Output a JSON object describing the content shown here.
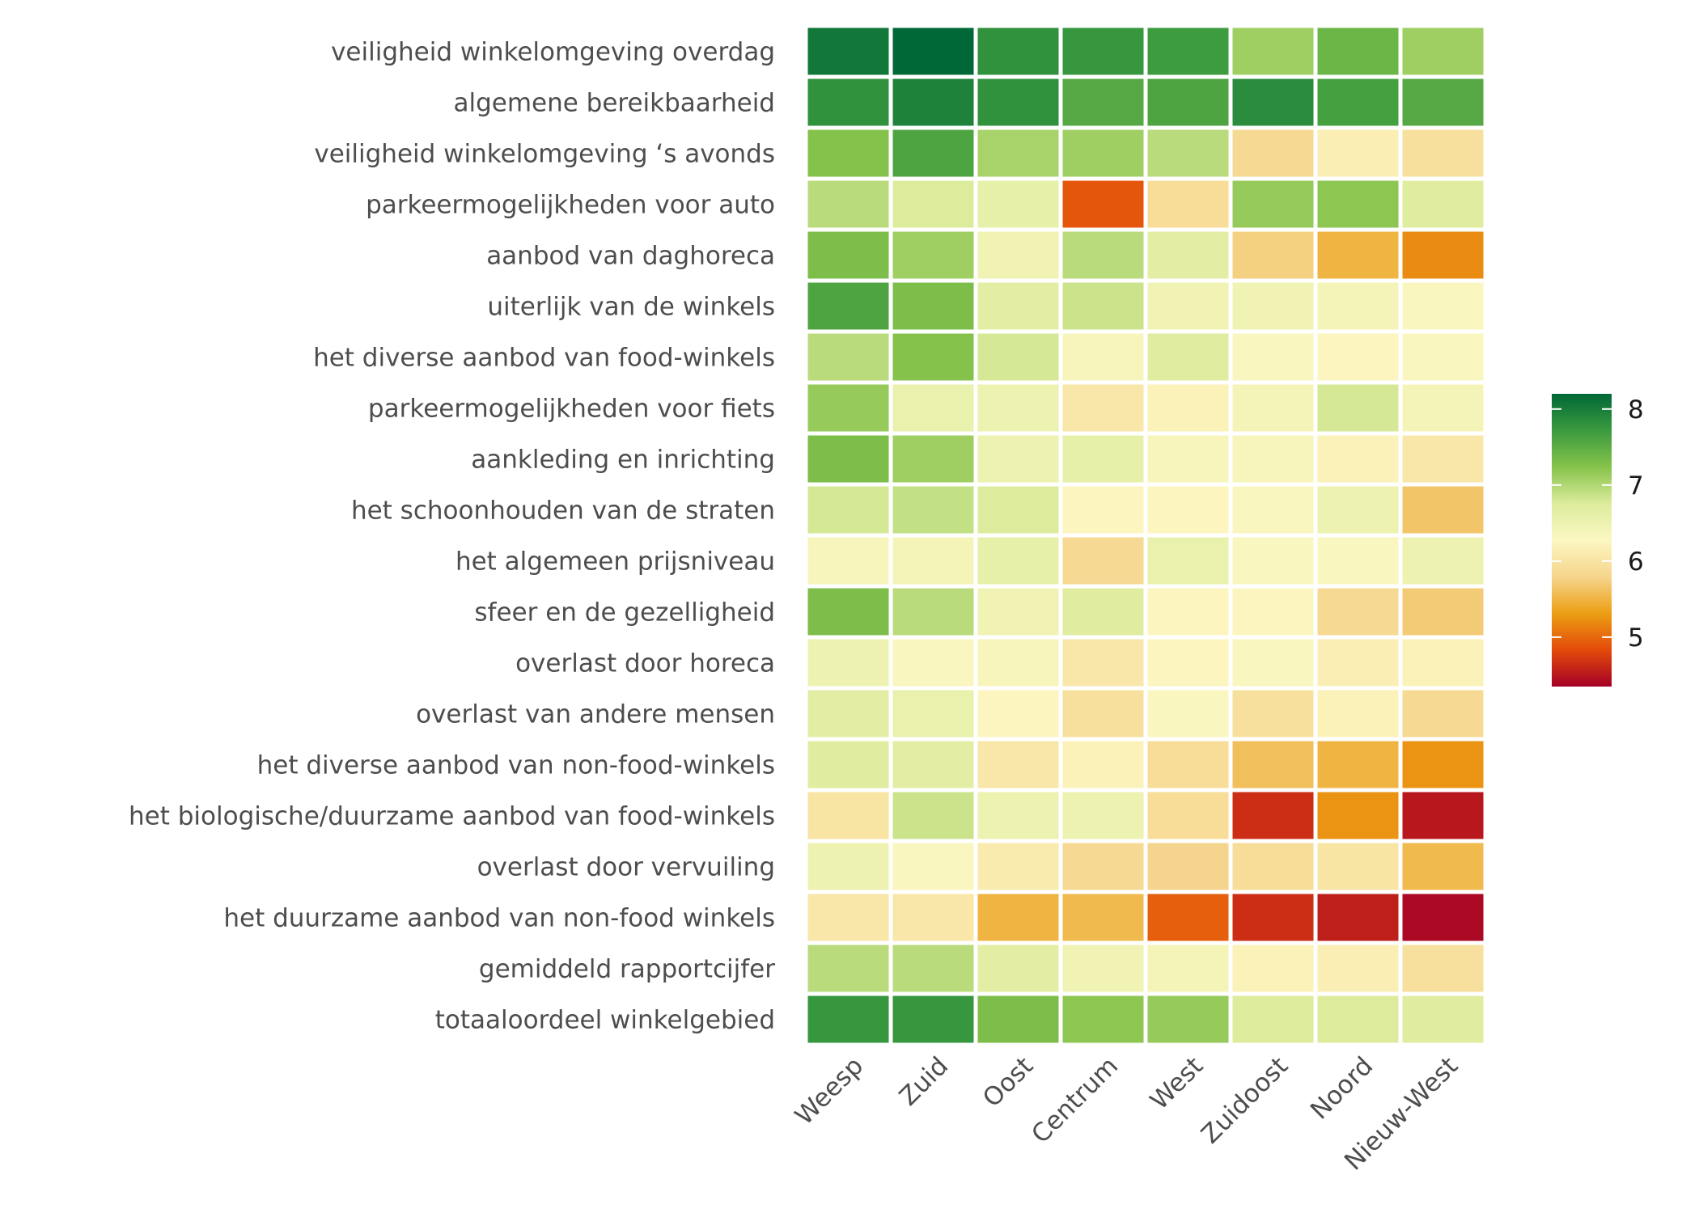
{
  "chart_data": {
    "type": "heatmap",
    "title": "",
    "xlabel": "",
    "ylabel": "",
    "columns": [
      "Weesp",
      "Zuid",
      "Oost",
      "Centrum",
      "West",
      "Zuidoost",
      "Noord",
      "Nieuw-West"
    ],
    "rows": [
      "veiligheid winkelomgeving overdag",
      "algemene bereikbaarheid",
      "veiligheid winkelomgeving ‘s avonds",
      "parkeermogelijkheden voor auto",
      "aanbod van daghoreca",
      "uiterlijk van de winkels",
      "het diverse aanbod van food-winkels",
      "parkeermogelijkheden voor fiets",
      "aankleding en inrichting",
      "het schoonhouden van de straten",
      "het algemeen prijsniveau",
      "sfeer en de gezelligheid",
      "overlast door horeca",
      "overlast van andere mensen",
      "het diverse aanbod van non-food-winkels",
      "het biologische/duurzame aanbod van food-winkels",
      "overlast door vervuiling",
      "het duurzame aanbod van non-food winkels",
      "gemiddeld rapportcijfer",
      "totaaloordeel winkelgebied"
    ],
    "values": [
      [
        8.05,
        8.2,
        7.8,
        7.75,
        7.7,
        7.1,
        7.4,
        7.1
      ],
      [
        7.8,
        7.95,
        7.8,
        7.55,
        7.6,
        7.85,
        7.65,
        7.55
      ],
      [
        7.25,
        7.6,
        7.05,
        7.1,
        6.95,
        5.85,
        6.15,
        5.95
      ],
      [
        6.95,
        6.75,
        6.6,
        4.9,
        5.9,
        7.15,
        7.2,
        6.7
      ],
      [
        7.3,
        7.1,
        6.45,
        6.95,
        6.65,
        5.75,
        5.5,
        5.2
      ],
      [
        7.6,
        7.3,
        6.65,
        6.85,
        6.45,
        6.45,
        6.4,
        6.3
      ],
      [
        6.95,
        7.25,
        6.8,
        6.35,
        6.7,
        6.3,
        6.25,
        6.3
      ],
      [
        7.15,
        6.55,
        6.5,
        6.05,
        6.2,
        6.4,
        6.8,
        6.4
      ],
      [
        7.3,
        7.1,
        6.5,
        6.6,
        6.35,
        6.35,
        6.2,
        6.05
      ],
      [
        6.8,
        6.9,
        6.75,
        6.25,
        6.25,
        6.3,
        6.5,
        5.65
      ],
      [
        6.35,
        6.4,
        6.6,
        5.85,
        6.55,
        6.3,
        6.3,
        6.5
      ],
      [
        7.3,
        6.95,
        6.45,
        6.7,
        6.25,
        6.25,
        5.85,
        5.7
      ],
      [
        6.5,
        6.3,
        6.35,
        6.05,
        6.25,
        6.3,
        6.15,
        6.2
      ],
      [
        6.65,
        6.55,
        6.25,
        5.95,
        6.3,
        5.95,
        6.2,
        5.85
      ],
      [
        6.7,
        6.65,
        6.05,
        6.2,
        5.9,
        5.6,
        5.5,
        5.25
      ],
      [
        6.0,
        6.85,
        6.5,
        6.5,
        5.9,
        4.65,
        5.25,
        4.5
      ],
      [
        6.5,
        6.3,
        6.1,
        5.85,
        5.8,
        5.9,
        6.0,
        5.55
      ],
      [
        6.05,
        6.05,
        5.5,
        5.55,
        4.95,
        4.65,
        4.55,
        4.4
      ],
      [
        6.95,
        6.95,
        6.65,
        6.45,
        6.4,
        6.2,
        6.15,
        5.95
      ],
      [
        7.75,
        7.75,
        7.3,
        7.2,
        7.15,
        6.75,
        6.75,
        6.7
      ]
    ],
    "colorscale": {
      "min": 4.35,
      "max": 8.2,
      "ticks": [
        5,
        6,
        7,
        8
      ],
      "colors": [
        "#a50026",
        "#e34a0a",
        "#ec9f14",
        "#f5d58c",
        "#fcf7c2",
        "#dcec9c",
        "#86c34b",
        "#3a9a3e",
        "#006837"
      ],
      "legend_position": "right"
    },
    "grid": false
  }
}
